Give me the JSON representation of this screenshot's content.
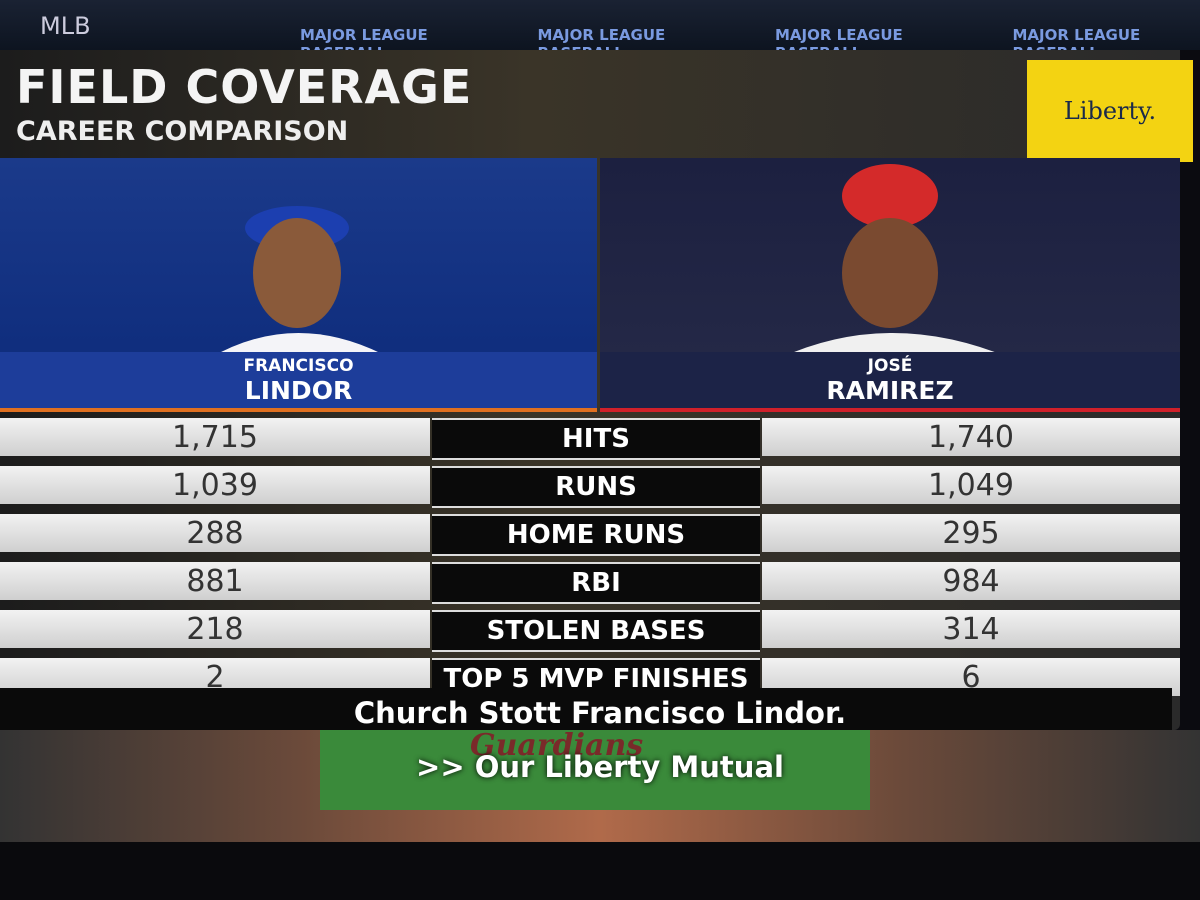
{
  "header": {
    "network": "MLB",
    "ticker": [
      "MAJOR LEAGUE BASEBALL",
      "MAJOR LEAGUE BASEBALL",
      "MAJOR LEAGUE BASEBALL",
      "MAJOR LEAGUE BASEBALL"
    ],
    "sponsor": "Liberty."
  },
  "title": "FIELD COVERAGE",
  "subtitle": "CAREER COMPARISON",
  "players": [
    {
      "first": "FRANCISCO",
      "last": "LINDOR"
    },
    {
      "first": "JOSÉ",
      "last": "RAMIREZ"
    }
  ],
  "table": {
    "rows": [
      [
        "1,715",
        "HITS",
        "1,740"
      ],
      [
        "1,039",
        "RUNS",
        "1,049"
      ],
      [
        "288",
        "HOME RUNS",
        "295"
      ],
      [
        "881",
        "RBI",
        "984"
      ],
      [
        "218",
        "STOLEN BASES",
        "314"
      ],
      [
        "2",
        "TOP 5 MVP FINISHES",
        "6"
      ]
    ]
  },
  "captions": [
    "Church Stott Francisco Lindor.",
    ">> Our Liberty Mutual"
  ],
  "background": {
    "field_logo": "Guardians"
  }
}
